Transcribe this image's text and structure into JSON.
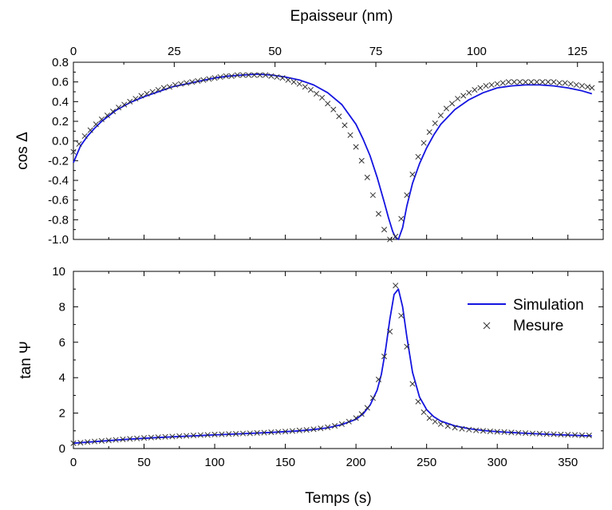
{
  "chart_data": [
    {
      "type": "line",
      "top_xlabel": "Epaisseur (nm)",
      "top_xlim": [
        0,
        130
      ],
      "top_xticks": [
        0,
        25,
        50,
        75,
        100,
        125
      ],
      "ylabel": "cos Δ",
      "ylim": [
        -1.0,
        0.8
      ],
      "yticks": [
        -1.0,
        -0.8,
        -0.6,
        -0.4,
        -0.2,
        0.0,
        0.2,
        0.4,
        0.6,
        0.8
      ],
      "ytick_labels": [
        "-1.0",
        "-0.8",
        "-0.6",
        "-0.4",
        "-0.2",
        "0.0",
        "0.2",
        "0.4",
        "0.6",
        "0.8"
      ],
      "xlim": [
        0,
        375
      ],
      "grid": false,
      "series": [
        {
          "name": "Simulation",
          "style": "line",
          "color": "#1414e0",
          "x": [
            0,
            5,
            10,
            15,
            20,
            30,
            40,
            50,
            60,
            70,
            80,
            90,
            100,
            110,
            120,
            130,
            140,
            150,
            160,
            170,
            180,
            190,
            200,
            205,
            210,
            215,
            220,
            223,
            226,
            228,
            230,
            233,
            236,
            240,
            245,
            250,
            255,
            260,
            270,
            280,
            290,
            300,
            310,
            320,
            330,
            340,
            350,
            360,
            367
          ],
          "y": [
            -0.22,
            -0.05,
            0.05,
            0.13,
            0.2,
            0.31,
            0.39,
            0.45,
            0.5,
            0.55,
            0.58,
            0.61,
            0.64,
            0.66,
            0.67,
            0.68,
            0.67,
            0.65,
            0.62,
            0.57,
            0.49,
            0.37,
            0.17,
            0.02,
            -0.15,
            -0.37,
            -0.62,
            -0.78,
            -0.92,
            -0.98,
            -1.0,
            -0.88,
            -0.66,
            -0.43,
            -0.23,
            -0.07,
            0.06,
            0.17,
            0.32,
            0.42,
            0.49,
            0.54,
            0.56,
            0.57,
            0.57,
            0.56,
            0.54,
            0.51,
            0.48
          ]
        },
        {
          "name": "Mesure",
          "style": "marker-x",
          "color": "#333333",
          "x": [
            0,
            4,
            8,
            12,
            16,
            20,
            24,
            28,
            32,
            36,
            40,
            44,
            48,
            52,
            56,
            60,
            64,
            68,
            72,
            76,
            80,
            84,
            88,
            92,
            96,
            100,
            104,
            108,
            112,
            116,
            120,
            124,
            128,
            132,
            136,
            140,
            144,
            148,
            152,
            156,
            160,
            164,
            168,
            172,
            176,
            180,
            184,
            188,
            192,
            196,
            200,
            204,
            208,
            212,
            216,
            220,
            224,
            228,
            232,
            236,
            240,
            244,
            248,
            252,
            256,
            260,
            264,
            268,
            272,
            276,
            280,
            284,
            288,
            292,
            296,
            300,
            304,
            308,
            312,
            316,
            320,
            324,
            328,
            332,
            336,
            340,
            344,
            348,
            352,
            356,
            360,
            364,
            367
          ],
          "y": [
            -0.11,
            -0.03,
            0.05,
            0.11,
            0.17,
            0.22,
            0.26,
            0.3,
            0.34,
            0.37,
            0.4,
            0.43,
            0.46,
            0.48,
            0.5,
            0.52,
            0.54,
            0.55,
            0.57,
            0.58,
            0.59,
            0.6,
            0.61,
            0.62,
            0.63,
            0.64,
            0.65,
            0.66,
            0.66,
            0.67,
            0.67,
            0.67,
            0.67,
            0.67,
            0.67,
            0.66,
            0.65,
            0.64,
            0.62,
            0.6,
            0.58,
            0.55,
            0.52,
            0.48,
            0.44,
            0.38,
            0.32,
            0.25,
            0.16,
            0.06,
            -0.06,
            -0.2,
            -0.37,
            -0.55,
            -0.74,
            -0.9,
            -1.0,
            -0.97,
            -0.79,
            -0.55,
            -0.34,
            -0.16,
            -0.02,
            0.09,
            0.18,
            0.26,
            0.33,
            0.38,
            0.43,
            0.46,
            0.49,
            0.52,
            0.54,
            0.56,
            0.57,
            0.58,
            0.59,
            0.6,
            0.6,
            0.6,
            0.6,
            0.6,
            0.6,
            0.6,
            0.6,
            0.6,
            0.59,
            0.59,
            0.58,
            0.57,
            0.56,
            0.55,
            0.54
          ]
        }
      ]
    },
    {
      "type": "line",
      "xlabel": "Temps (s)",
      "ylabel": "tan Ψ",
      "xlim": [
        0,
        375
      ],
      "xticks": [
        0,
        50,
        100,
        150,
        200,
        250,
        300,
        350
      ],
      "ylim": [
        0,
        10
      ],
      "yticks": [
        0,
        2,
        4,
        6,
        8,
        10
      ],
      "legend": {
        "position": "top-right",
        "entries": [
          "Simulation",
          "Mesure"
        ]
      },
      "grid": false,
      "series": [
        {
          "name": "Simulation",
          "style": "line",
          "color": "#1414e0",
          "x": [
            0,
            20,
            40,
            60,
            80,
            100,
            120,
            140,
            160,
            170,
            180,
            190,
            200,
            205,
            210,
            215,
            218,
            221,
            224,
            227,
            230,
            233,
            236,
            240,
            245,
            250,
            255,
            260,
            270,
            280,
            290,
            300,
            320,
            340,
            360,
            367
          ],
          "y": [
            0.3,
            0.42,
            0.53,
            0.62,
            0.7,
            0.77,
            0.84,
            0.91,
            1.0,
            1.07,
            1.17,
            1.35,
            1.65,
            1.95,
            2.45,
            3.3,
            4.2,
            5.6,
            7.3,
            8.7,
            9.0,
            8.0,
            6.3,
            4.3,
            2.9,
            2.2,
            1.8,
            1.55,
            1.28,
            1.12,
            1.02,
            0.95,
            0.86,
            0.79,
            0.73,
            0.71
          ]
        },
        {
          "name": "Mesure",
          "style": "marker-x",
          "color": "#333333",
          "x": [
            0,
            5,
            10,
            15,
            20,
            25,
            30,
            35,
            40,
            45,
            50,
            55,
            60,
            65,
            70,
            75,
            80,
            85,
            90,
            95,
            100,
            105,
            110,
            115,
            120,
            125,
            130,
            135,
            140,
            145,
            150,
            155,
            160,
            165,
            170,
            175,
            180,
            185,
            190,
            195,
            200,
            204,
            208,
            212,
            216,
            220,
            224,
            228,
            232,
            236,
            240,
            244,
            248,
            252,
            256,
            260,
            265,
            270,
            275,
            280,
            285,
            290,
            295,
            300,
            305,
            310,
            315,
            320,
            325,
            330,
            335,
            340,
            345,
            350,
            355,
            360,
            365
          ],
          "y": [
            0.3,
            0.33,
            0.37,
            0.4,
            0.43,
            0.46,
            0.49,
            0.52,
            0.55,
            0.57,
            0.6,
            0.62,
            0.64,
            0.66,
            0.68,
            0.7,
            0.72,
            0.74,
            0.76,
            0.77,
            0.79,
            0.8,
            0.82,
            0.83,
            0.85,
            0.86,
            0.88,
            0.9,
            0.92,
            0.94,
            0.96,
            0.99,
            1.02,
            1.05,
            1.09,
            1.14,
            1.2,
            1.28,
            1.38,
            1.52,
            1.72,
            1.95,
            2.3,
            2.85,
            3.9,
            5.2,
            6.6,
            9.2,
            7.5,
            5.75,
            3.65,
            2.65,
            2.05,
            1.72,
            1.52,
            1.38,
            1.27,
            1.18,
            1.12,
            1.07,
            1.03,
            1.0,
            0.97,
            0.95,
            0.93,
            0.91,
            0.89,
            0.87,
            0.85,
            0.84,
            0.82,
            0.81,
            0.79,
            0.78,
            0.77,
            0.75,
            0.74
          ]
        }
      ]
    }
  ]
}
